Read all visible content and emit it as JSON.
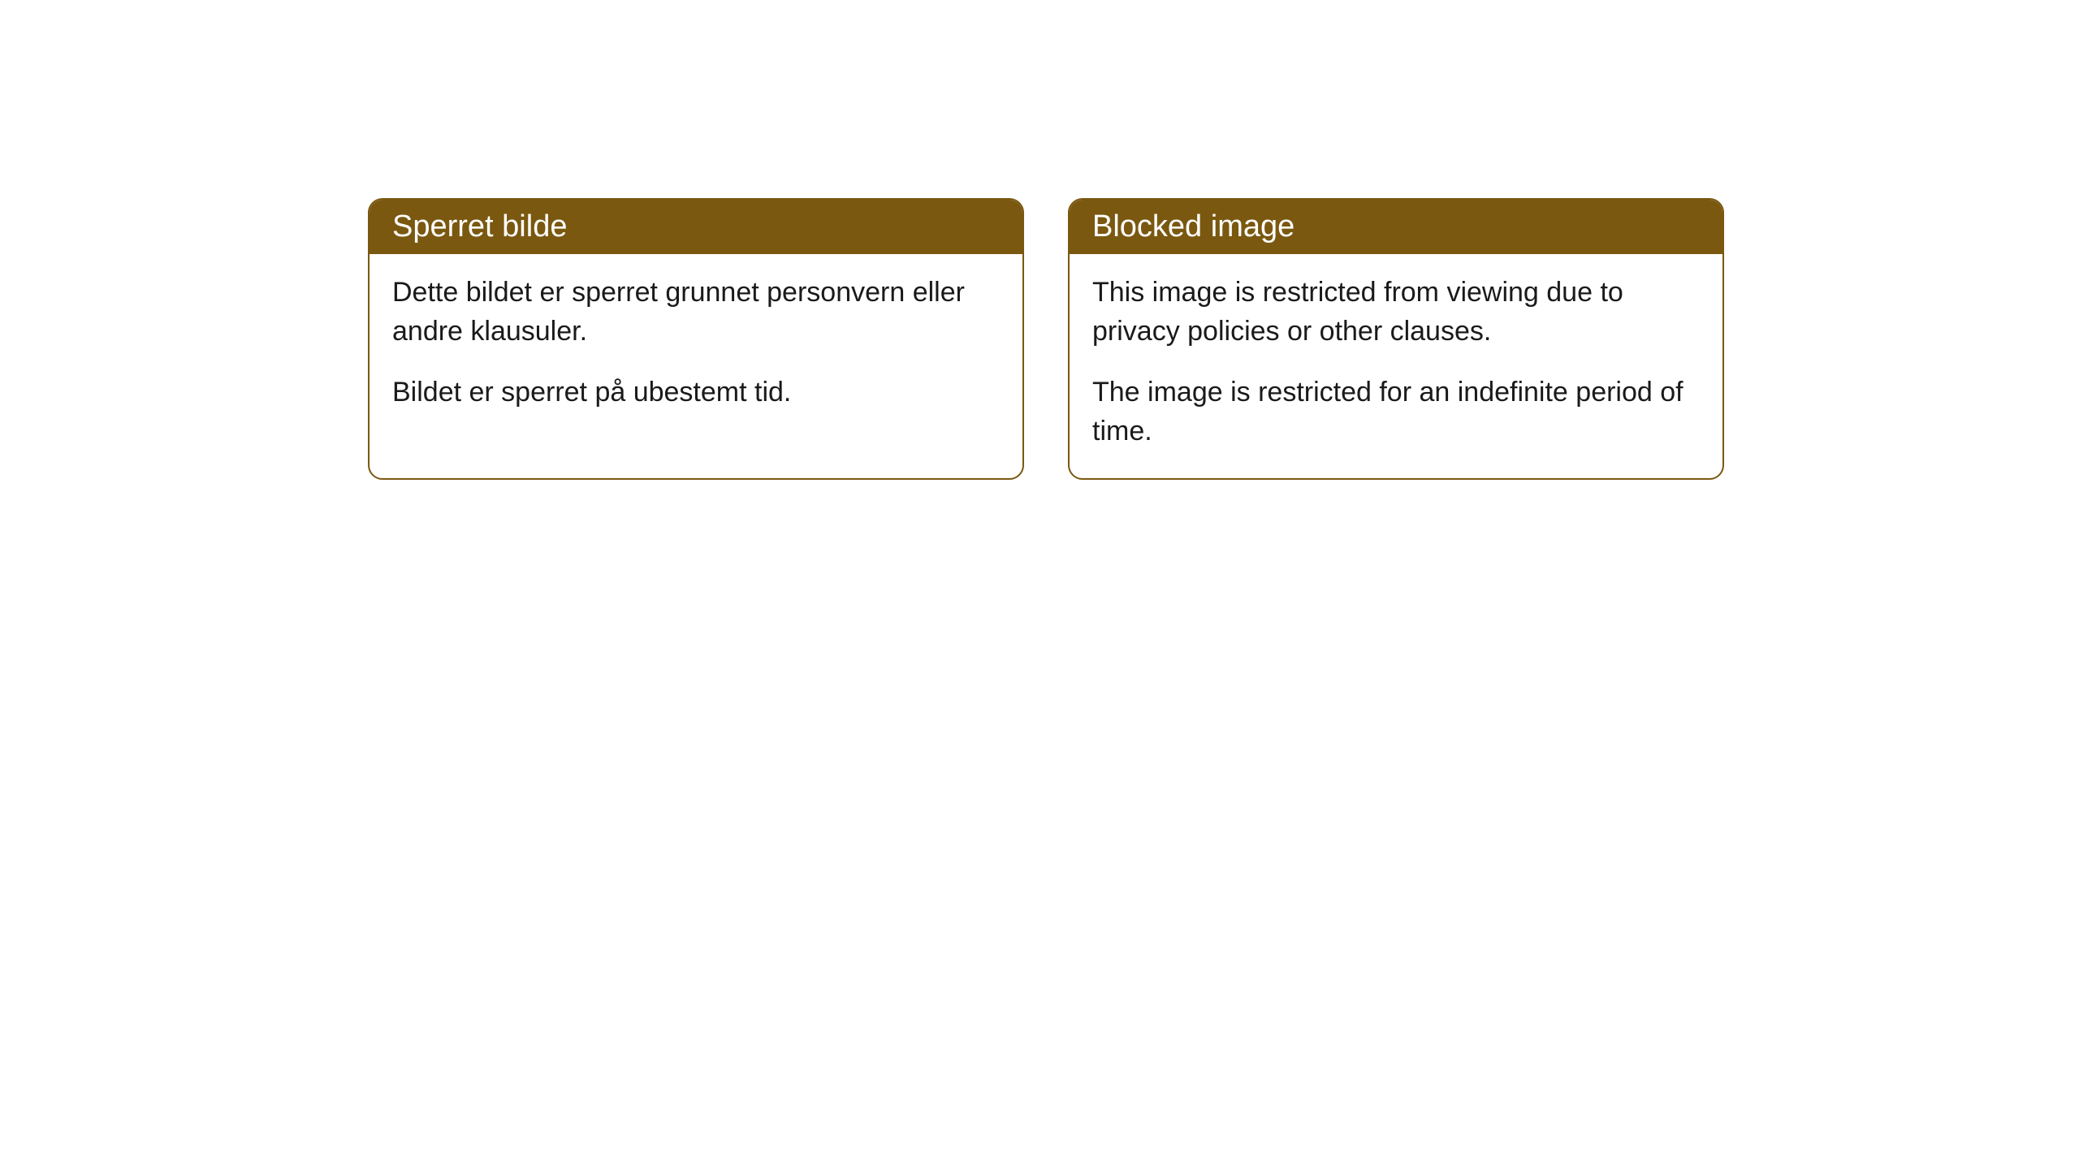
{
  "cards": [
    {
      "title": "Sperret bilde",
      "paragraph1": "Dette bildet er sperret grunnet personvern eller andre klausuler.",
      "paragraph2": "Bildet er sperret på ubestemt tid."
    },
    {
      "title": "Blocked image",
      "paragraph1": "This image is restricted from viewing due to privacy policies or other clauses.",
      "paragraph2": "The image is restricted for an indefinite period of time."
    }
  ],
  "styling": {
    "header_bg_color": "#7a5810",
    "header_text_color": "#ffffff",
    "border_color": "#7a5810",
    "body_bg_color": "#ffffff",
    "body_text_color": "#1a1a1a",
    "border_radius": 18,
    "header_fontsize": 38,
    "body_fontsize": 34
  }
}
